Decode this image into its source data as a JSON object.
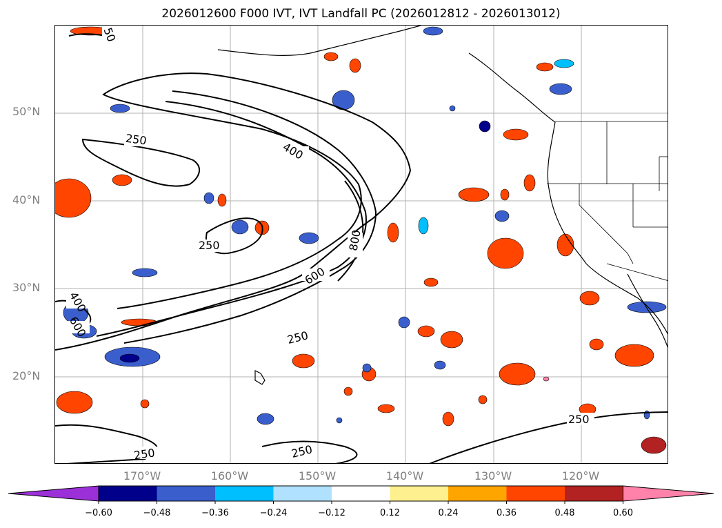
{
  "title": "2026012600 F000 IVT, IVT Landfall PC (2026012812 - 2026013012)",
  "latitude_labels": [
    "50°N",
    "40°N",
    "30°N",
    "20°N"
  ],
  "longitude_labels": [
    "170°W",
    "160°W",
    "150°W",
    "140°W",
    "130°W",
    "120°W"
  ],
  "contour_labels": [
    "250",
    "250",
    "250",
    "250",
    "250",
    "250",
    "400",
    "400",
    "600",
    "600",
    "800",
    "50"
  ],
  "colorbar": {
    "ticks": [
      "−0.60",
      "−0.48",
      "−0.36",
      "−0.24",
      "−0.12",
      "0.12",
      "0.24",
      "0.36",
      "0.48",
      "0.60"
    ],
    "colors": [
      "#9b30d9",
      "#00008b",
      "#3a5fcd",
      "#00bfff",
      "#b0e2ff",
      "#ffffff",
      "#fff08f",
      "#ffa500",
      "#ff4500",
      "#b22222",
      "#ff82ab"
    ]
  },
  "shading_colors": {
    "neg_light": "#b0e2ff",
    "neg_mid": "#00bfff",
    "neg_strong": "#3a5fcd",
    "neg_max": "#00008b",
    "pos_light": "#fff08f",
    "pos_mid": "#ffa500",
    "pos_strong": "#ff4500",
    "pos_max": "#b22222"
  }
}
